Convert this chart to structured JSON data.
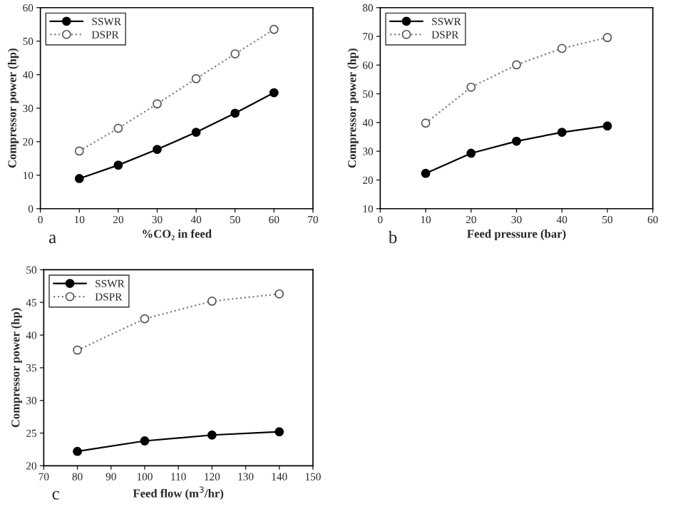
{
  "chart_data": [
    {
      "type": "line",
      "xlabel": "%CO₂ in feed",
      "ylabel": "Compressor power (hp)",
      "x": [
        10,
        20,
        30,
        40,
        50,
        60
      ],
      "xlim": [
        0,
        70
      ],
      "xticks": [
        0,
        10,
        20,
        30,
        40,
        50,
        60,
        70
      ],
      "ylim": [
        0,
        60
      ],
      "yticks": [
        0,
        10,
        20,
        30,
        40,
        50,
        60
      ],
      "legend": "top left",
      "grid": false,
      "marker": "circle",
      "annotations": [
        "a"
      ],
      "series": [
        {
          "name": "SSWR",
          "color": "#000000",
          "line_style": "solid",
          "values": [
            9,
            13,
            17.7,
            22.8,
            28.5,
            34.6
          ]
        },
        {
          "name": "DSPR",
          "color": "#808080",
          "line_style": "dotted",
          "values": [
            17.2,
            24,
            31.3,
            38.8,
            46.2,
            53.5
          ]
        }
      ]
    },
    {
      "type": "line",
      "xlabel": "Feed pressure (bar)",
      "ylabel": "Compressor power (hp)",
      "x": [
        10,
        20,
        30,
        40,
        50
      ],
      "xlim": [
        0,
        60
      ],
      "xticks": [
        0,
        10,
        20,
        30,
        40,
        50,
        60
      ],
      "ylim": [
        10,
        80
      ],
      "yticks": [
        10,
        20,
        30,
        40,
        50,
        60,
        70,
        80
      ],
      "legend": "top left",
      "grid": false,
      "marker": "circle",
      "annotations": [
        "b"
      ],
      "series": [
        {
          "name": "SSWR",
          "color": "#000000",
          "line_style": "solid",
          "values": [
            22.3,
            29.3,
            33.5,
            36.6,
            38.8
          ]
        },
        {
          "name": "DSPR",
          "color": "#808080",
          "line_style": "dotted",
          "values": [
            39.8,
            52.3,
            60.1,
            65.8,
            69.6
          ]
        }
      ]
    },
    {
      "type": "line",
      "xlabel": "Feed flow (m$^{3}$/hr)",
      "ylabel": "Compressor power (hp)",
      "x": [
        80,
        100,
        120,
        140
      ],
      "xlim": [
        70,
        150
      ],
      "xticks": [
        70,
        80,
        90,
        100,
        110,
        120,
        130,
        140,
        150
      ],
      "ylim": [
        20,
        50
      ],
      "yticks": [
        20,
        25,
        30,
        35,
        40,
        45,
        50
      ],
      "legend": "top left",
      "grid": false,
      "marker": "circle",
      "annotations": [
        "c"
      ],
      "series": [
        {
          "name": "SSWR",
          "color": "#000000",
          "line_style": "solid",
          "values": [
            22.2,
            23.8,
            24.7,
            25.2
          ]
        },
        {
          "name": "DSPR",
          "color": "#808080",
          "line_style": "dotted",
          "values": [
            37.7,
            42.5,
            45.2,
            46.3
          ]
        }
      ]
    }
  ]
}
